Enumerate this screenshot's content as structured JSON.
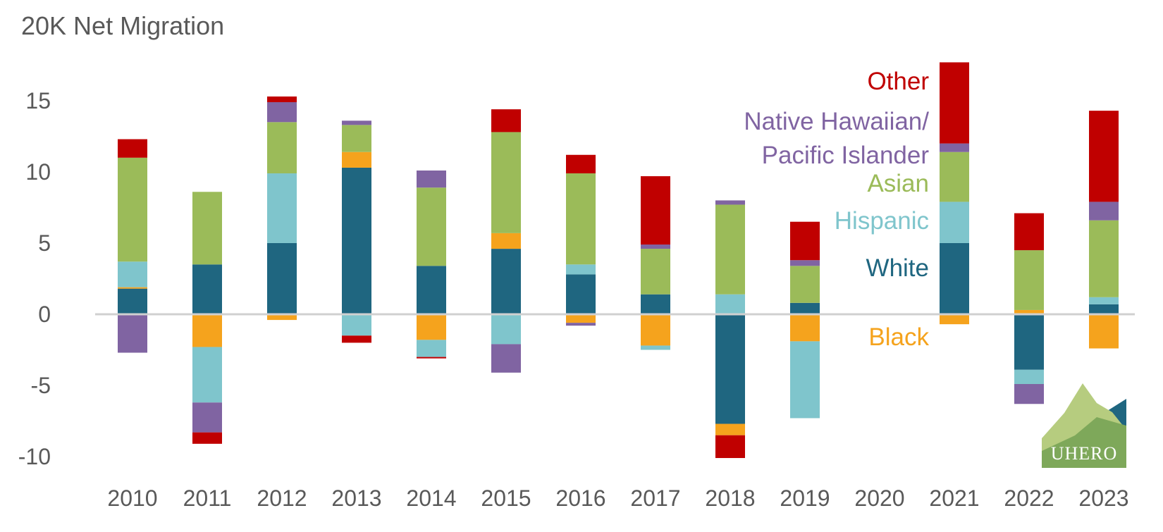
{
  "chart_data": {
    "type": "bar",
    "stacked": true,
    "title": "20K Net Migration",
    "xlabel": "",
    "ylabel": "",
    "ylim": [
      -10,
      18
    ],
    "yticks": [
      15,
      10,
      5,
      0,
      -5,
      -10
    ],
    "ytick_labels": [
      "15",
      "10",
      "5",
      "0",
      "-5",
      "-10"
    ],
    "categories": [
      "2010",
      "2011",
      "2012",
      "2013",
      "2014",
      "2015",
      "2016",
      "2017",
      "2018",
      "2019",
      "2020",
      "2021",
      "2022",
      "2023"
    ],
    "series": [
      {
        "name": "White",
        "color": "#1f6680",
        "values": [
          1.8,
          3.5,
          5.0,
          10.3,
          3.4,
          4.6,
          2.8,
          1.4,
          -7.7,
          0.8,
          0,
          5.0,
          -3.9,
          0.7
        ]
      },
      {
        "name": "Black",
        "color": "#f5a31d",
        "values": [
          0.1,
          -2.3,
          -0.4,
          1.1,
          -1.8,
          1.1,
          -0.6,
          -2.2,
          -0.8,
          -1.9,
          0,
          -0.7,
          0.3,
          -2.4
        ]
      },
      {
        "name": "Hispanic",
        "color": "#7fc5cc",
        "values": [
          1.8,
          -3.9,
          4.9,
          -1.5,
          -1.2,
          -2.1,
          0.7,
          -0.3,
          1.4,
          -5.4,
          0,
          2.9,
          -1.0,
          0.5
        ]
      },
      {
        "name": "Asian",
        "color": "#9bbb59",
        "values": [
          7.3,
          5.1,
          3.6,
          1.9,
          5.5,
          7.1,
          6.4,
          3.2,
          6.3,
          2.6,
          0,
          3.5,
          4.2,
          5.4
        ]
      },
      {
        "name": "Native Hawaiian/ Pacific Islander",
        "color": "#8064a2",
        "values": [
          -2.7,
          -2.1,
          1.4,
          0.3,
          1.2,
          -2.0,
          -0.2,
          0.3,
          0.3,
          0.4,
          0,
          0.6,
          -1.4,
          1.3
        ]
      },
      {
        "name": "Other",
        "color": "#c00000",
        "values": [
          1.3,
          -0.8,
          0.4,
          -0.5,
          -0.1,
          1.6,
          1.3,
          4.8,
          -1.6,
          2.7,
          0,
          5.7,
          2.6,
          6.4
        ]
      }
    ],
    "legend": {
      "placement": "inline-right",
      "entries": [
        {
          "lines": [
            "Other"
          ],
          "color": "#c00000"
        },
        {
          "lines": [
            "Native Hawaiian/",
            "Pacific Islander"
          ],
          "color": "#8064a2"
        },
        {
          "lines": [
            "Asian"
          ],
          "color": "#9bbb59"
        },
        {
          "lines": [
            "Hispanic"
          ],
          "color": "#7fc5cc"
        },
        {
          "lines": [
            "White"
          ],
          "color": "#1f6680"
        },
        {
          "lines": [
            "Black"
          ],
          "color": "#f5a31d"
        }
      ]
    },
    "grid": false
  },
  "logo": {
    "text": "UHERO",
    "colors": [
      "#7ea85a",
      "#b6cc7f",
      "#1f6680"
    ]
  }
}
